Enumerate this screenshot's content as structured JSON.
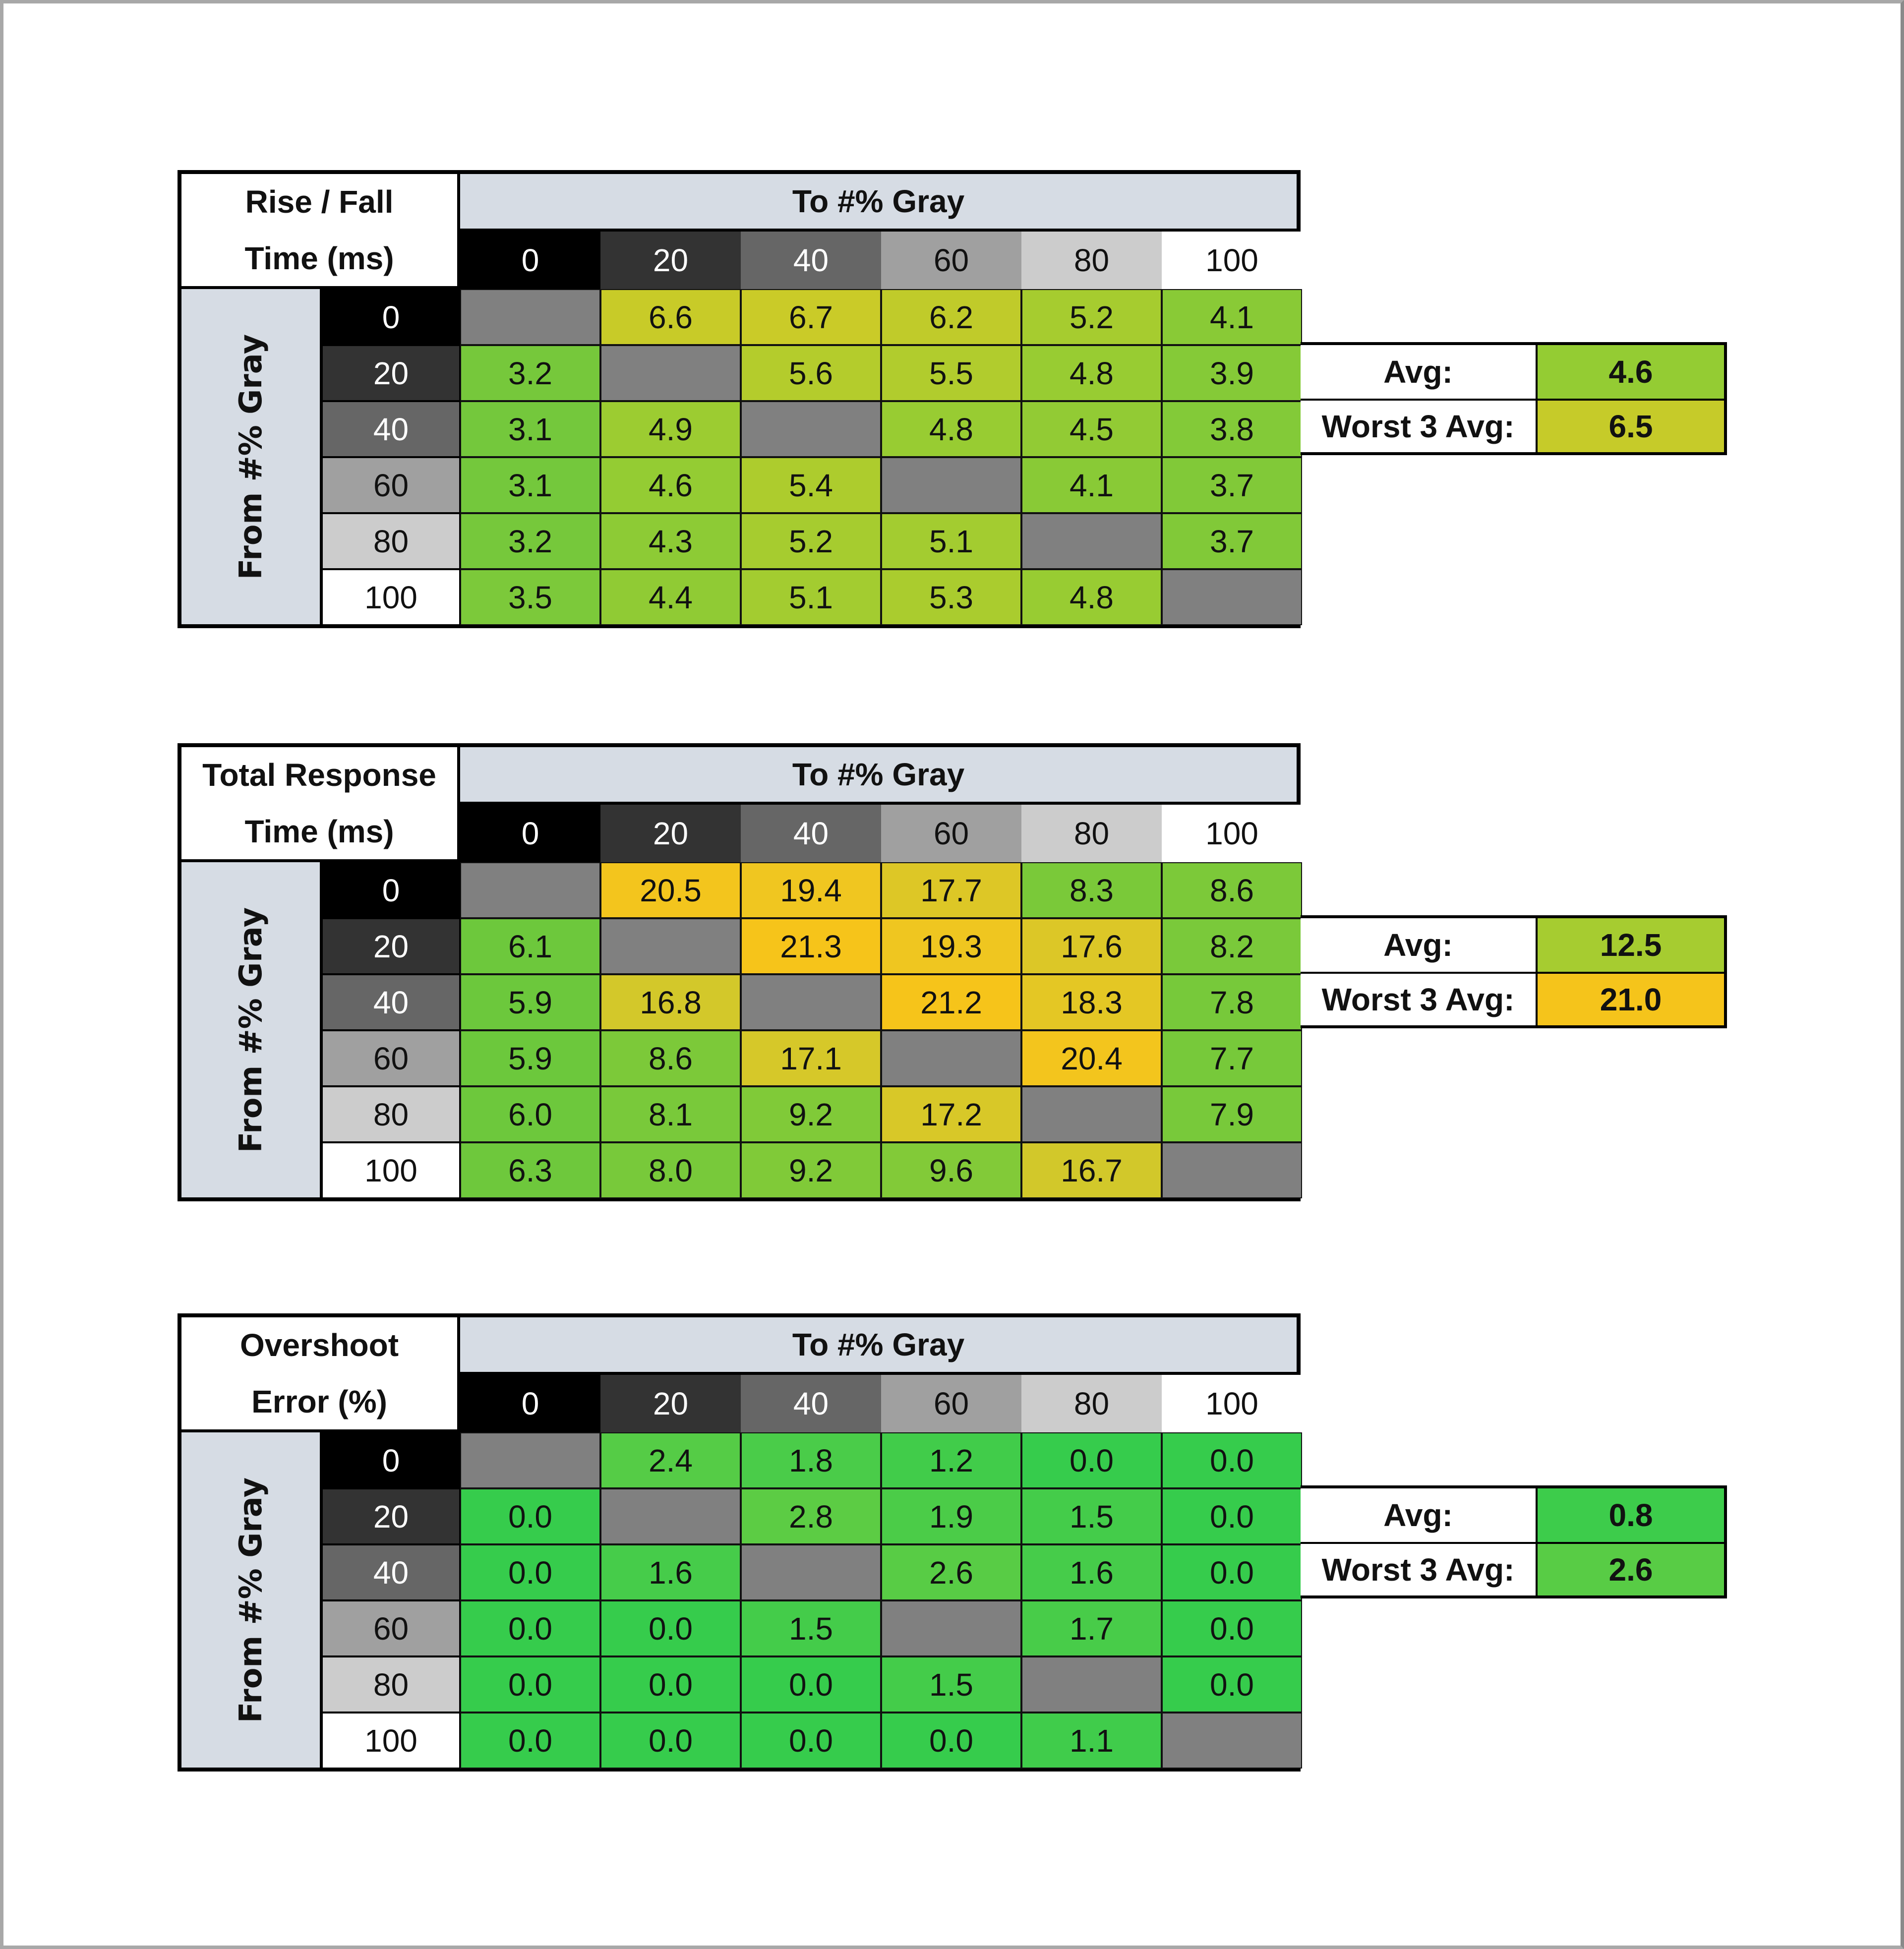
{
  "diag_color": "#808080",
  "header_bg": "#d6dce4",
  "gray_levels": [
    "#000000",
    "#333333",
    "#666666",
    "#a0a0a0",
    "#cccccc",
    "#ffffff"
  ],
  "tables": [
    {
      "title_line1": "Rise / Fall",
      "title_line2": "Time (ms)",
      "to_label": "To #% Gray",
      "from_label": "From #% Gray",
      "columns": [
        "0",
        "20",
        "40",
        "60",
        "80",
        "100"
      ],
      "rows": [
        "0",
        "20",
        "40",
        "60",
        "80",
        "100"
      ],
      "values": [
        [
          "",
          "6.6",
          "6.7",
          "6.2",
          "5.2",
          "4.1"
        ],
        [
          "3.2",
          "",
          "5.6",
          "5.5",
          "4.8",
          "3.9"
        ],
        [
          "3.1",
          "4.9",
          "",
          "4.8",
          "4.5",
          "3.8"
        ],
        [
          "3.1",
          "4.6",
          "5.4",
          "",
          "4.1",
          "3.7"
        ],
        [
          "3.2",
          "4.3",
          "5.2",
          "5.1",
          "",
          "3.7"
        ],
        [
          "3.5",
          "4.4",
          "5.1",
          "5.3",
          "4.8",
          ""
        ]
      ],
      "avg_label": "Avg:",
      "avg": "4.6",
      "worst_label": "Worst 3 Avg:",
      "worst": "6.5",
      "color_scale": [
        [
          3.1,
          "#74c83c"
        ],
        [
          4.8,
          "#98cc32"
        ],
        [
          5.6,
          "#b4cc2c"
        ],
        [
          6.7,
          "#cacb28"
        ]
      ]
    },
    {
      "title_line1": "Total Response",
      "title_line2": "Time (ms)",
      "to_label": "To #% Gray",
      "from_label": "From #% Gray",
      "columns": [
        "0",
        "20",
        "40",
        "60",
        "80",
        "100"
      ],
      "rows": [
        "0",
        "20",
        "40",
        "60",
        "80",
        "100"
      ],
      "values": [
        [
          "",
          "20.5",
          "19.4",
          "17.7",
          "8.3",
          "8.6"
        ],
        [
          "6.1",
          "",
          "21.3",
          "19.3",
          "17.6",
          "8.2"
        ],
        [
          "5.9",
          "16.8",
          "",
          "21.2",
          "18.3",
          "7.8"
        ],
        [
          "5.9",
          "8.6",
          "17.1",
          "",
          "20.4",
          "7.7"
        ],
        [
          "6.0",
          "8.1",
          "9.2",
          "17.2",
          "",
          "7.9"
        ],
        [
          "6.3",
          "8.0",
          "9.2",
          "9.6",
          "16.7",
          ""
        ]
      ],
      "avg_label": "Avg:",
      "avg": "12.5",
      "worst_label": "Worst 3 Avg:",
      "worst": "21.0",
      "color_scale": [
        [
          5.9,
          "#6cc83c"
        ],
        [
          9.6,
          "#82ca38"
        ],
        [
          12.5,
          "#a6cc30"
        ],
        [
          16.7,
          "#d2c82a"
        ],
        [
          19.4,
          "#f0c620"
        ],
        [
          21.3,
          "#f6c41a"
        ]
      ]
    },
    {
      "title_line1": "Overshoot",
      "title_line2": "Error (%)",
      "to_label": "To #% Gray",
      "from_label": "From #% Gray",
      "columns": [
        "0",
        "20",
        "40",
        "60",
        "80",
        "100"
      ],
      "rows": [
        "0",
        "20",
        "40",
        "60",
        "80",
        "100"
      ],
      "values": [
        [
          "",
          "2.4",
          "1.8",
          "1.2",
          "0.0",
          "0.0"
        ],
        [
          "0.0",
          "",
          "2.8",
          "1.9",
          "1.5",
          "0.0"
        ],
        [
          "0.0",
          "1.6",
          "",
          "2.6",
          "1.6",
          "0.0"
        ],
        [
          "0.0",
          "0.0",
          "1.5",
          "",
          "1.7",
          "0.0"
        ],
        [
          "0.0",
          "0.0",
          "0.0",
          "1.5",
          "",
          "0.0"
        ],
        [
          "0.0",
          "0.0",
          "0.0",
          "0.0",
          "1.1",
          ""
        ]
      ],
      "avg_label": "Avg:",
      "avg": "0.8",
      "worst_label": "Worst 3 Avg:",
      "worst": "2.6",
      "color_scale": [
        [
          0.0,
          "#36cc4c"
        ],
        [
          1.5,
          "#44cc4a"
        ],
        [
          2.8,
          "#5ccc44"
        ]
      ]
    }
  ]
}
